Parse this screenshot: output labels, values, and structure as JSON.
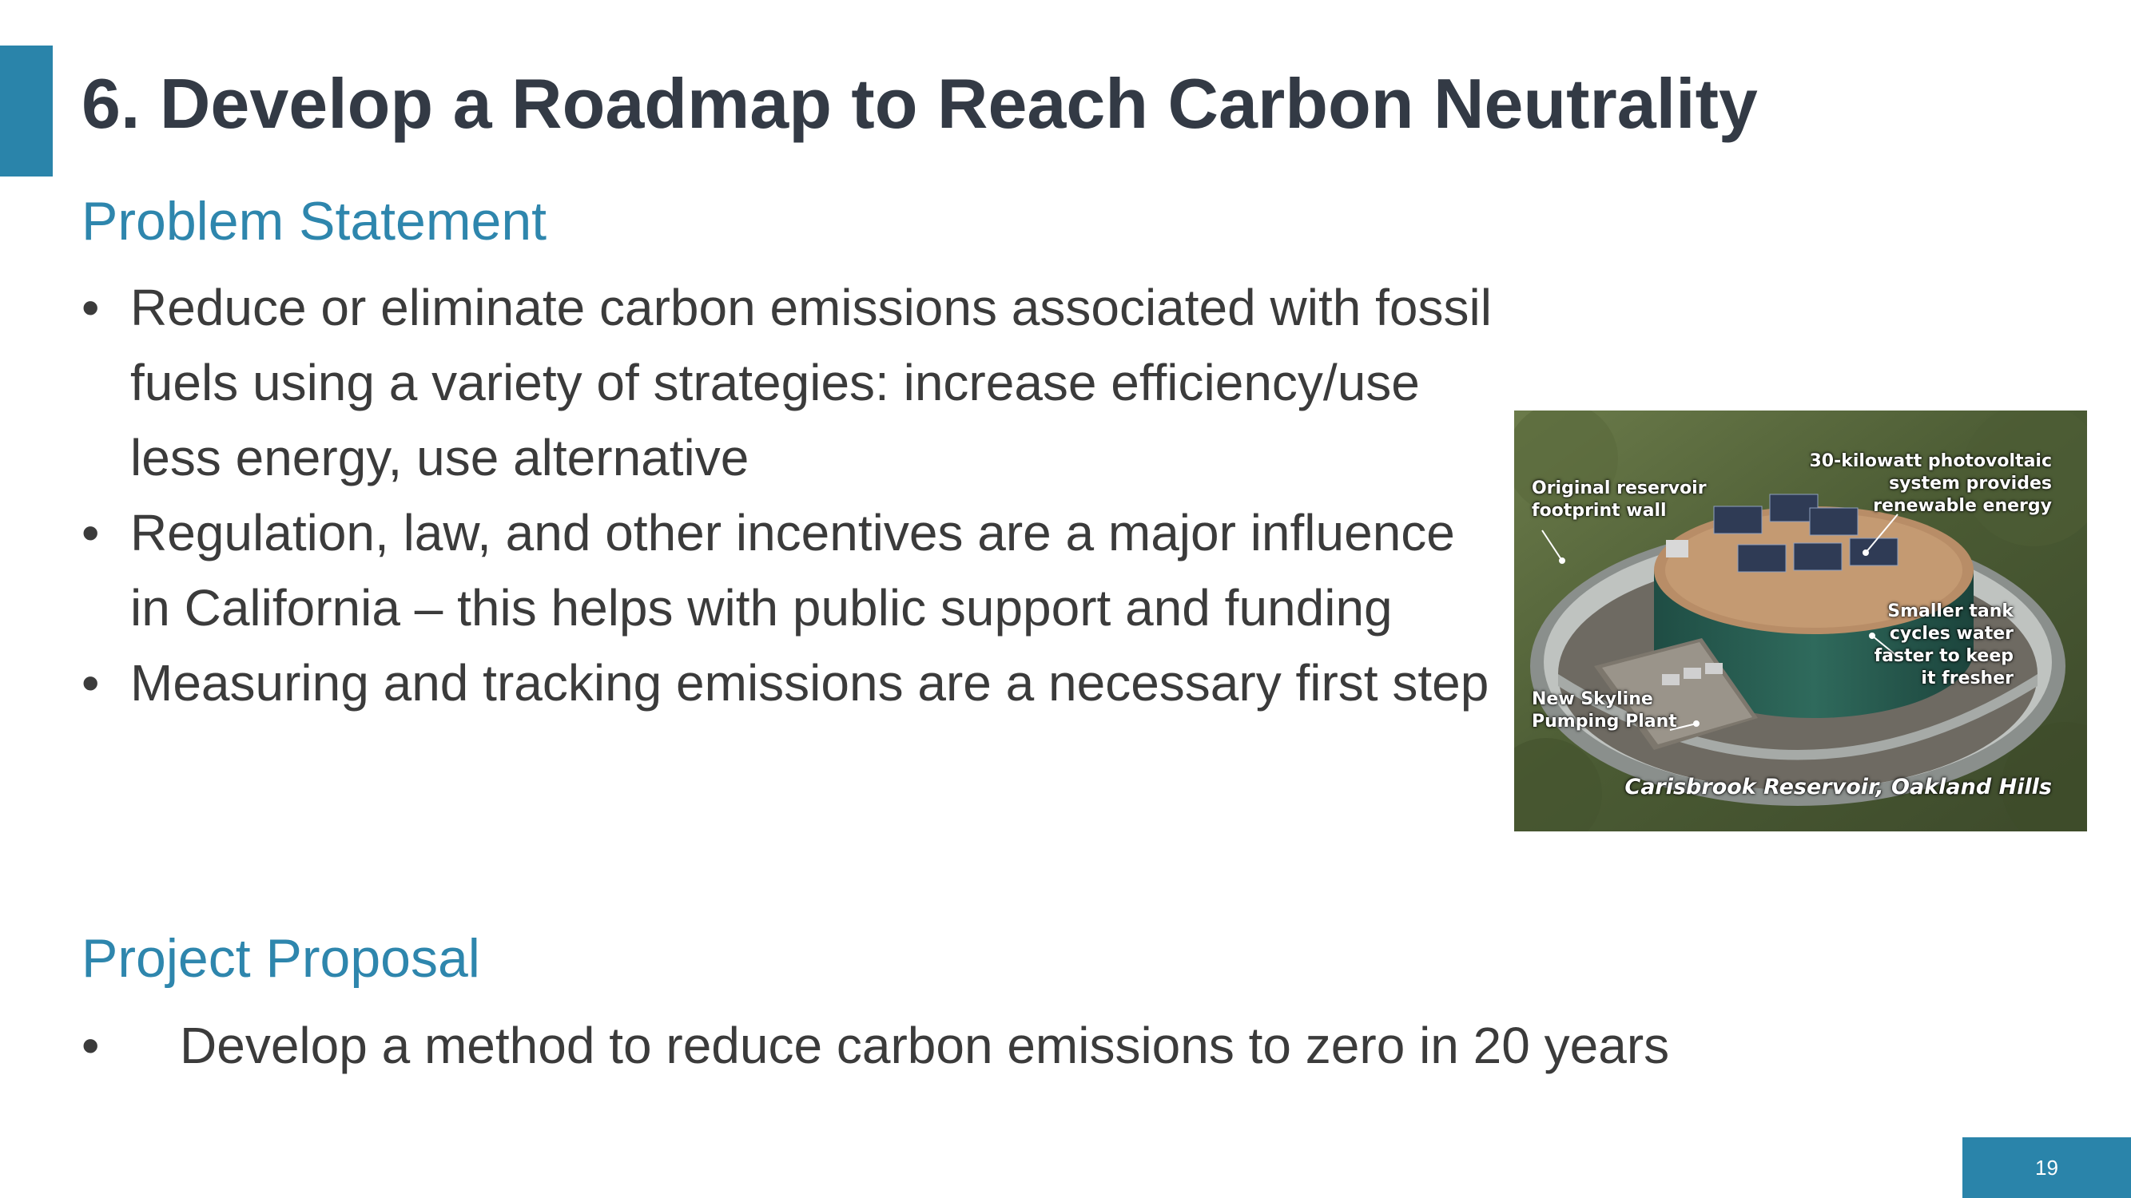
{
  "slide": {
    "title": "6. Develop a Roadmap to Reach Carbon Neutrality",
    "page_number": "19"
  },
  "problem": {
    "heading": "Problem Statement",
    "bullets": [
      "Reduce or eliminate carbon emissions associated with fossil fuels using a variety of strategies: increase efficiency/use less energy, use alternative",
      "Regulation, law, and other incentives are a major influence in California – this helps with public support and funding",
      "Measuring and tracking emissions are a necessary first step"
    ]
  },
  "proposal": {
    "heading": "Project Proposal",
    "bullets": [
      "Develop a method to reduce carbon emissions to zero in 20 years"
    ]
  },
  "photo": {
    "labels": {
      "footprint_line1": "Original reservoir",
      "footprint_line2": "footprint wall",
      "pv_line1": "30-kilowatt photovoltaic",
      "pv_line2": "system provides",
      "pv_line3": "renewable energy",
      "tank_line1": "Smaller tank",
      "tank_line2": "cycles water",
      "tank_line3": "faster to keep",
      "tank_line4": "it fresher",
      "plant_line1": "New Skyline",
      "plant_line2": "Pumping Plant"
    },
    "caption": "Carisbrook Reservoir, Oakland Hills"
  },
  "bullet_glyph": "•",
  "colors": {
    "accent": "#2a84aa",
    "heading": "#2e86ad",
    "title": "#333a45"
  }
}
